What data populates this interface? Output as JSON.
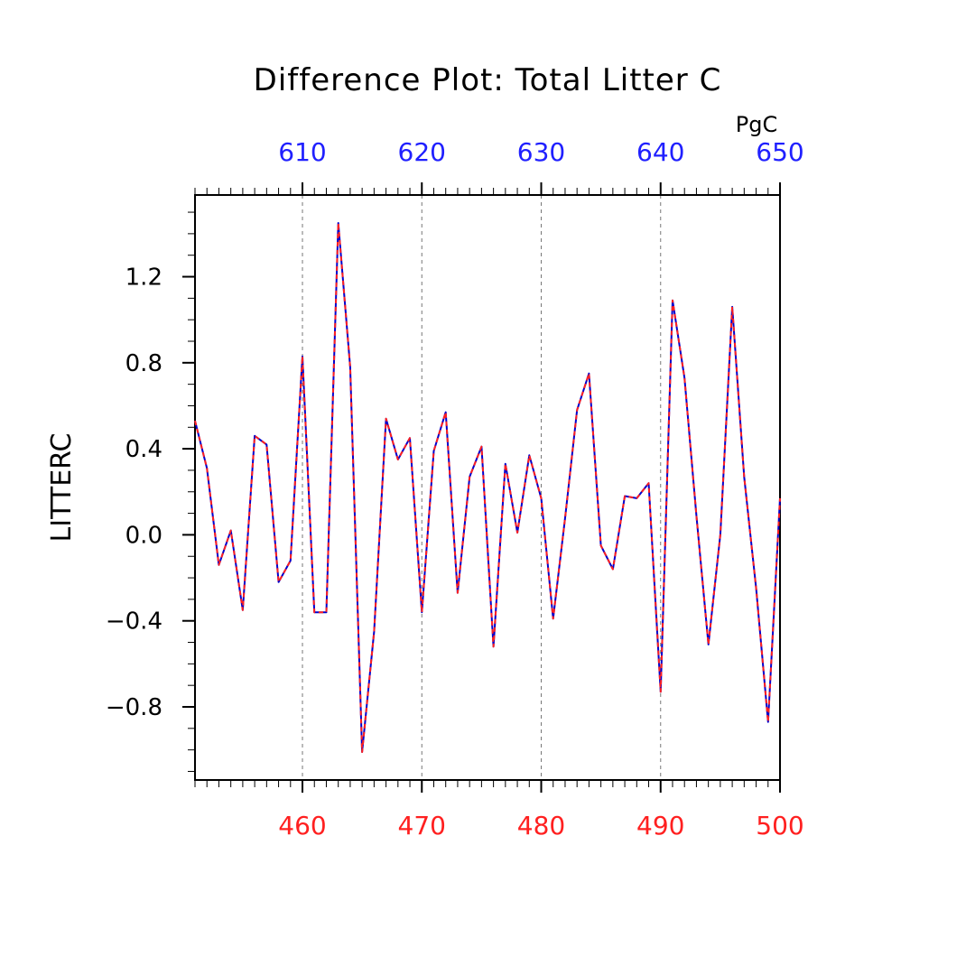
{
  "chart_data": {
    "type": "line",
    "title": "Difference Plot: Total Litter C",
    "units": "PgC",
    "ylabel": "LITTERC",
    "ylim": [
      -1.14,
      1.58
    ],
    "y_ticks": [
      "1.2",
      "0.8",
      "0.4",
      "0.0",
      "−0.4",
      "−0.8"
    ],
    "y_tick_values": [
      1.2,
      0.8,
      0.4,
      0.0,
      -0.4,
      -0.8
    ],
    "bottom_axis": {
      "range": [
        451,
        500
      ],
      "tick_labels": [
        "460",
        "470",
        "480",
        "490",
        "500"
      ],
      "tick_values": [
        460,
        470,
        480,
        490,
        500
      ],
      "color": "#ff2020"
    },
    "top_axis": {
      "range": [
        601,
        650
      ],
      "tick_labels": [
        "610",
        "620",
        "630",
        "640",
        "650"
      ],
      "tick_values": [
        610,
        620,
        630,
        640,
        650
      ],
      "color": "#2020ff"
    },
    "grid": "dashed vertical at major ticks",
    "x": [
      451,
      452,
      453,
      454,
      455,
      456,
      457,
      458,
      459,
      460,
      461,
      462,
      463,
      464,
      465,
      466,
      467,
      468,
      469,
      470,
      471,
      472,
      473,
      474,
      475,
      476,
      477,
      478,
      479,
      480,
      481,
      482,
      483,
      484,
      485,
      486,
      487,
      488,
      489,
      490,
      491,
      492,
      493,
      494,
      495,
      496,
      497,
      498,
      499,
      500
    ],
    "series": [
      {
        "color": "#0000cc",
        "style": "solid",
        "values": [
          0.53,
          0.31,
          -0.14,
          0.02,
          -0.35,
          0.46,
          0.42,
          -0.22,
          -0.12,
          0.83,
          -0.36,
          -0.36,
          1.45,
          0.78,
          -1.01,
          -0.45,
          0.54,
          0.35,
          0.45,
          -0.36,
          0.39,
          0.57,
          -0.27,
          0.27,
          0.41,
          -0.52,
          0.33,
          0.01,
          0.37,
          0.17,
          -0.39,
          0.08,
          0.58,
          0.75,
          -0.05,
          -0.16,
          0.18,
          0.17,
          0.24,
          -0.73,
          1.09,
          0.73,
          0.09,
          -0.51,
          0.0,
          1.06,
          0.27,
          -0.25,
          -0.87,
          0.17
        ]
      },
      {
        "color": "#ff2020",
        "style": "dashed",
        "values": [
          0.53,
          0.31,
          -0.14,
          0.02,
          -0.35,
          0.46,
          0.42,
          -0.22,
          -0.12,
          0.83,
          -0.36,
          -0.36,
          1.45,
          0.78,
          -1.01,
          -0.45,
          0.54,
          0.35,
          0.45,
          -0.36,
          0.39,
          0.57,
          -0.27,
          0.27,
          0.41,
          -0.52,
          0.33,
          0.01,
          0.37,
          0.17,
          -0.39,
          0.08,
          0.58,
          0.75,
          -0.05,
          -0.16,
          0.18,
          0.17,
          0.24,
          -0.73,
          1.09,
          0.73,
          0.09,
          -0.51,
          0.0,
          1.06,
          0.27,
          -0.25,
          -0.87,
          0.17
        ]
      }
    ]
  }
}
